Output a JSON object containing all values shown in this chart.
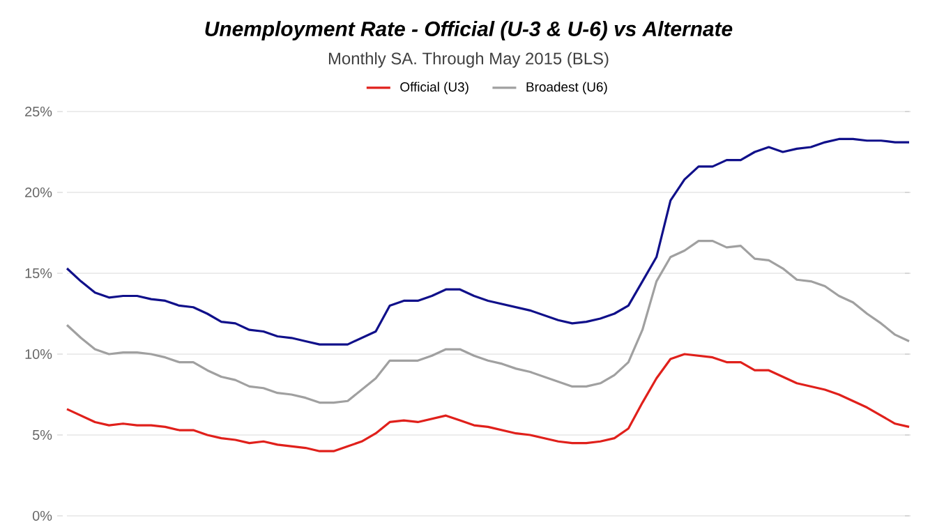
{
  "chart_data": {
    "type": "line",
    "title": "Unemployment Rate - Official (U-3 & U-6) vs Alternate",
    "subtitle": "Monthly SA. Through May 2015 (BLS)",
    "categories": [
      null,
      null,
      null,
      null,
      null,
      null,
      null,
      null,
      null,
      null,
      null,
      null,
      null,
      null,
      null,
      null,
      null,
      null,
      null,
      null,
      null,
      null,
      null,
      null,
      null,
      null,
      null,
      null,
      null,
      null,
      null,
      null,
      null,
      null,
      null,
      null,
      null,
      null,
      null,
      null,
      null,
      null,
      null,
      null,
      null,
      null,
      null,
      null,
      null,
      null,
      null,
      null,
      null,
      null,
      null,
      null,
      null,
      null,
      null,
      null,
      null
    ],
    "ylim": [
      0,
      25
    ],
    "yticks": [
      {
        "value": 0,
        "label": "0%"
      },
      {
        "value": 5,
        "label": "5%"
      },
      {
        "value": 10,
        "label": "10%"
      },
      {
        "value": 15,
        "label": "15%"
      },
      {
        "value": 20,
        "label": "20%"
      },
      {
        "value": 25,
        "label": "25%"
      }
    ],
    "grid": "y",
    "legend": "top",
    "marker": "none",
    "series": [
      {
        "name": "Official (U3)",
        "color": "#e0201b",
        "values": [
          6.6,
          6.2,
          5.8,
          5.6,
          5.7,
          5.6,
          5.6,
          5.5,
          5.3,
          5.3,
          5.0,
          4.8,
          4.7,
          4.5,
          4.6,
          4.4,
          4.3,
          4.2,
          4.0,
          4.0,
          4.3,
          4.6,
          5.1,
          5.8,
          5.9,
          5.8,
          6.0,
          6.2,
          5.9,
          5.6,
          5.5,
          5.3,
          5.1,
          5.0,
          4.8,
          4.6,
          4.5,
          4.5,
          4.6,
          4.8,
          5.4,
          7.0,
          8.5,
          9.7,
          10.0,
          9.9,
          9.8,
          9.5,
          9.5,
          9.0,
          9.0,
          8.6,
          8.2,
          8.0,
          7.8,
          7.5,
          7.1,
          6.7,
          6.2,
          5.7,
          5.5
        ]
      },
      {
        "name": "Broadest (U6)",
        "color": "#a0a0a0",
        "values": [
          11.8,
          11.0,
          10.3,
          10.0,
          10.1,
          10.1,
          10.0,
          9.8,
          9.5,
          9.5,
          9.0,
          8.6,
          8.4,
          8.0,
          7.9,
          7.6,
          7.5,
          7.3,
          7.0,
          7.0,
          7.1,
          7.8,
          8.5,
          9.6,
          9.6,
          9.6,
          9.9,
          10.3,
          10.3,
          9.9,
          9.6,
          9.4,
          9.1,
          8.9,
          8.6,
          8.3,
          8.0,
          8.0,
          8.2,
          8.7,
          9.5,
          11.5,
          14.5,
          16.0,
          16.4,
          17.0,
          17.0,
          16.6,
          16.7,
          15.9,
          15.8,
          15.3,
          14.6,
          14.5,
          14.2,
          13.6,
          13.2,
          12.5,
          11.9,
          11.2,
          10.8
        ]
      },
      {
        "color": "#10108a",
        "values": [
          15.3,
          14.5,
          13.8,
          13.5,
          13.6,
          13.6,
          13.4,
          13.3,
          13.0,
          12.9,
          12.5,
          12.0,
          11.9,
          11.5,
          11.4,
          11.1,
          11.0,
          10.8,
          10.6,
          10.6,
          10.6,
          11.0,
          11.4,
          13.0,
          13.3,
          13.3,
          13.6,
          14.0,
          14.0,
          13.6,
          13.3,
          13.1,
          12.9,
          12.7,
          12.4,
          12.1,
          11.9,
          12.0,
          12.2,
          12.5,
          13.0,
          14.5,
          16.0,
          19.5,
          20.8,
          21.6,
          21.6,
          22.0,
          22.0,
          22.5,
          22.8,
          22.5,
          22.7,
          22.8,
          23.1,
          23.3,
          23.3,
          23.2,
          23.2,
          23.1,
          23.1
        ]
      }
    ]
  }
}
